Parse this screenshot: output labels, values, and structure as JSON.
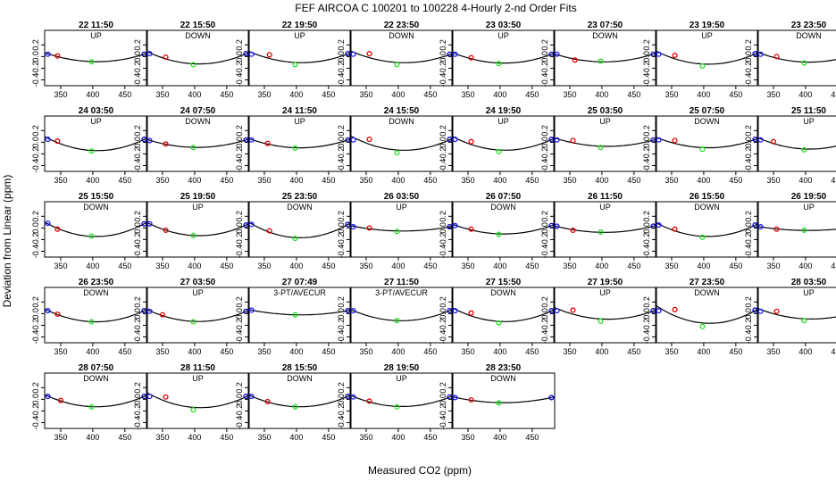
{
  "chart_data": {
    "type": "scatter",
    "title": "FEF   AIRCOA C   100201 to 100228   4-Hourly 2-nd Order Fits",
    "xlabel": "Measured CO2 (ppm)",
    "ylabel": "Deviation from Linear (ppm)",
    "xlim": [
      325,
      485
    ],
    "ylim": [
      -0.5,
      0.45
    ],
    "x_ticks": [
      350,
      400,
      450
    ],
    "y_ticks": [
      -0.4,
      -0.2,
      0.0,
      0.2
    ],
    "y_tick_labels": [
      "-0.4",
      "-0.2",
      "0.0",
      "0.2"
    ],
    "point_colors": {
      "low": "#1a1aff",
      "mid_low": "#e00000",
      "mid": "#22dd22",
      "high": "#0000cc",
      "curve": "#000000"
    },
    "panels": [
      {
        "title": "22 11:50",
        "mode": "UP",
        "points": [
          [
            330,
            0.04
          ],
          [
            345,
            0.01
          ],
          [
            398,
            -0.09
          ],
          [
            480,
            0.04
          ]
        ]
      },
      {
        "title": "22 15:50",
        "mode": "DOWN",
        "points": [
          [
            330,
            0.05
          ],
          [
            355,
            -0.01
          ],
          [
            398,
            -0.14
          ],
          [
            480,
            0.05
          ]
        ]
      },
      {
        "title": "22 19:50",
        "mode": "UP",
        "points": [
          [
            330,
            0.04
          ],
          [
            358,
            0.03
          ],
          [
            398,
            -0.14
          ],
          [
            480,
            0.05
          ]
        ]
      },
      {
        "title": "22 23:50",
        "mode": "DOWN",
        "points": [
          [
            330,
            0.04
          ],
          [
            355,
            0.05
          ],
          [
            398,
            -0.14
          ],
          [
            480,
            0.04
          ]
        ]
      },
      {
        "title": "23 03:50",
        "mode": "UP",
        "points": [
          [
            330,
            0.04
          ],
          [
            355,
            -0.02
          ],
          [
            398,
            -0.12
          ],
          [
            480,
            0.04
          ]
        ]
      },
      {
        "title": "23 07:50",
        "mode": "DOWN",
        "points": [
          [
            330,
            0.04
          ],
          [
            358,
            -0.06
          ],
          [
            398,
            -0.08
          ],
          [
            480,
            0.04
          ]
        ]
      },
      {
        "title": "23 19:50",
        "mode": "UP",
        "points": [
          [
            330,
            0.04
          ],
          [
            355,
            0.02
          ],
          [
            398,
            -0.16
          ],
          [
            480,
            0.05
          ]
        ]
      },
      {
        "title": "23 23:50",
        "mode": "DOWN",
        "points": [
          [
            330,
            0.04
          ],
          [
            355,
            0.0
          ],
          [
            398,
            -0.11
          ],
          [
            480,
            0.05
          ]
        ]
      },
      {
        "title": "24 03:50",
        "mode": "UP",
        "points": [
          [
            330,
            0.05
          ],
          [
            345,
            0.02
          ],
          [
            398,
            -0.15
          ],
          [
            480,
            0.05
          ]
        ]
      },
      {
        "title": "24 07:50",
        "mode": "DOWN",
        "points": [
          [
            330,
            0.03
          ],
          [
            355,
            -0.03
          ],
          [
            398,
            -0.09
          ],
          [
            480,
            0.04
          ]
        ]
      },
      {
        "title": "24 11:50",
        "mode": "UP",
        "points": [
          [
            330,
            0.04
          ],
          [
            355,
            -0.02
          ],
          [
            398,
            -0.1
          ],
          [
            480,
            0.04
          ]
        ]
      },
      {
        "title": "24 15:50",
        "mode": "DOWN",
        "points": [
          [
            330,
            0.04
          ],
          [
            355,
            0.05
          ],
          [
            398,
            -0.18
          ],
          [
            480,
            0.05
          ]
        ]
      },
      {
        "title": "24 19:50",
        "mode": "UP",
        "points": [
          [
            330,
            0.05
          ],
          [
            355,
            0.01
          ],
          [
            398,
            -0.16
          ],
          [
            480,
            0.05
          ]
        ]
      },
      {
        "title": "25 03:50",
        "mode": "UP",
        "points": [
          [
            330,
            0.04
          ],
          [
            355,
            0.03
          ],
          [
            398,
            -0.09
          ],
          [
            480,
            0.04
          ]
        ]
      },
      {
        "title": "25 07:50",
        "mode": "DOWN",
        "points": [
          [
            330,
            0.04
          ],
          [
            355,
            0.03
          ],
          [
            398,
            -0.12
          ],
          [
            480,
            0.05
          ]
        ]
      },
      {
        "title": "25 11:50",
        "mode": "UP",
        "points": [
          [
            330,
            0.04
          ],
          [
            350,
            0.01
          ],
          [
            398,
            -0.13
          ],
          [
            480,
            0.05
          ]
        ]
      },
      {
        "title": "25 15:50",
        "mode": "DOWN",
        "points": [
          [
            330,
            0.08
          ],
          [
            345,
            -0.02
          ],
          [
            398,
            -0.14
          ],
          [
            480,
            0.07
          ]
        ]
      },
      {
        "title": "25 19:50",
        "mode": "UP",
        "points": [
          [
            330,
            0.07
          ],
          [
            355,
            -0.04
          ],
          [
            398,
            -0.13
          ],
          [
            480,
            0.05
          ]
        ]
      },
      {
        "title": "25 23:50",
        "mode": "DOWN",
        "points": [
          [
            330,
            0.06
          ],
          [
            358,
            -0.05
          ],
          [
            398,
            -0.18
          ],
          [
            480,
            0.06
          ]
        ]
      },
      {
        "title": "26 03:50",
        "mode": "UP",
        "points": [
          [
            330,
            0.02
          ],
          [
            355,
            0.0
          ],
          [
            398,
            -0.06
          ],
          [
            480,
            0.02
          ]
        ]
      },
      {
        "title": "26 07:50",
        "mode": "DOWN",
        "points": [
          [
            330,
            0.04
          ],
          [
            355,
            -0.02
          ],
          [
            398,
            -0.11
          ],
          [
            480,
            0.04
          ]
        ]
      },
      {
        "title": "26 11:50",
        "mode": "UP",
        "points": [
          [
            330,
            0.03
          ],
          [
            355,
            -0.04
          ],
          [
            398,
            -0.07
          ],
          [
            480,
            0.03
          ]
        ]
      },
      {
        "title": "26 15:50",
        "mode": "DOWN",
        "points": [
          [
            330,
            0.05
          ],
          [
            355,
            -0.02
          ],
          [
            398,
            -0.16
          ],
          [
            480,
            0.05
          ]
        ]
      },
      {
        "title": "26 19:50",
        "mode": "UP",
        "points": [
          [
            330,
            0.02
          ],
          [
            355,
            -0.02
          ],
          [
            398,
            -0.04
          ],
          [
            480,
            0.02
          ]
        ]
      },
      {
        "title": "26 23:50",
        "mode": "DOWN",
        "points": [
          [
            330,
            0.05
          ],
          [
            345,
            -0.01
          ],
          [
            398,
            -0.14
          ],
          [
            480,
            0.05
          ]
        ]
      },
      {
        "title": "27 03:50",
        "mode": "UP",
        "points": [
          [
            330,
            0.04
          ],
          [
            350,
            -0.02
          ],
          [
            398,
            -0.14
          ],
          [
            480,
            0.04
          ]
        ]
      },
      {
        "title": "27 07:49",
        "mode": "3-PT/AVECUR",
        "points": [
          [
            330,
            0.06
          ],
          [
            398,
            -0.02
          ],
          [
            480,
            0.05
          ]
        ]
      },
      {
        "title": "27 11:50",
        "mode": "3-PT/AVECUR",
        "points": [
          [
            330,
            0.05
          ],
          [
            398,
            -0.12
          ],
          [
            480,
            0.05
          ]
        ]
      },
      {
        "title": "27 15:50",
        "mode": "DOWN",
        "points": [
          [
            330,
            0.05
          ],
          [
            355,
            0.01
          ],
          [
            398,
            -0.16
          ],
          [
            480,
            0.05
          ]
        ]
      },
      {
        "title": "27 19:50",
        "mode": "UP",
        "points": [
          [
            330,
            0.05
          ],
          [
            355,
            0.06
          ],
          [
            398,
            -0.13
          ],
          [
            480,
            0.05
          ]
        ]
      },
      {
        "title": "27 23:50",
        "mode": "DOWN",
        "points": [
          [
            330,
            0.05
          ],
          [
            355,
            0.07
          ],
          [
            398,
            -0.22
          ],
          [
            480,
            0.06
          ]
        ]
      },
      {
        "title": "28 03:50",
        "mode": "UP",
        "points": [
          [
            330,
            0.04
          ],
          [
            355,
            0.04
          ],
          [
            398,
            -0.12
          ],
          [
            480,
            0.04
          ]
        ]
      },
      {
        "title": "28 07:50",
        "mode": "DOWN",
        "points": [
          [
            330,
            0.05
          ],
          [
            350,
            -0.02
          ],
          [
            398,
            -0.13
          ],
          [
            480,
            0.05
          ]
        ]
      },
      {
        "title": "28 11:50",
        "mode": "UP",
        "points": [
          [
            330,
            0.05
          ],
          [
            355,
            0.04
          ],
          [
            398,
            -0.18
          ],
          [
            480,
            0.05
          ]
        ]
      },
      {
        "title": "28 15:50",
        "mode": "DOWN",
        "points": [
          [
            330,
            0.05
          ],
          [
            355,
            -0.04
          ],
          [
            398,
            -0.13
          ],
          [
            480,
            0.05
          ]
        ]
      },
      {
        "title": "28 19:50",
        "mode": "UP",
        "points": [
          [
            330,
            0.04
          ],
          [
            355,
            -0.03
          ],
          [
            398,
            -0.13
          ],
          [
            480,
            0.04
          ]
        ]
      },
      {
        "title": "28 23:50",
        "mode": "DOWN",
        "points": [
          [
            330,
            0.03
          ],
          [
            355,
            -0.01
          ],
          [
            398,
            -0.06
          ],
          [
            480,
            0.03
          ]
        ]
      }
    ]
  }
}
